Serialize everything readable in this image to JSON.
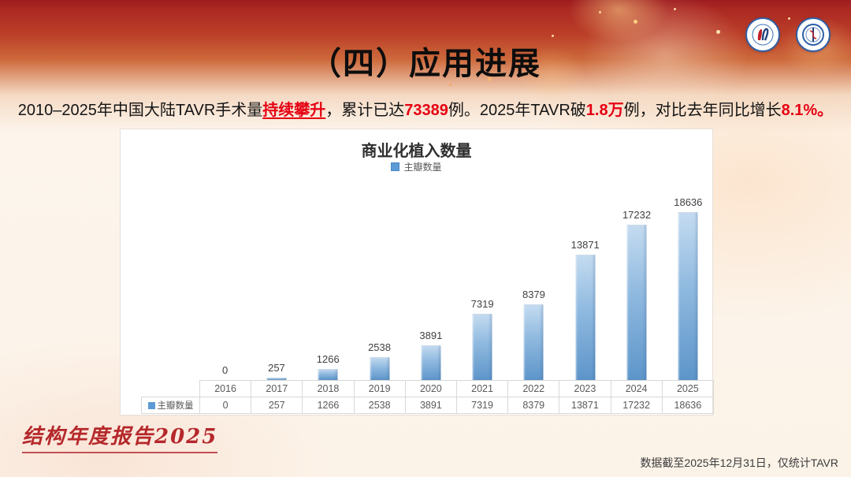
{
  "slide": {
    "title": "（四）应用进展",
    "subtitle": [
      {
        "text": "2010–2025年中国大陆TAVR手术量",
        "style": "normal"
      },
      {
        "text": "持续攀升",
        "style": "red-underline"
      },
      {
        "text": "，累计已达",
        "style": "normal"
      },
      {
        "text": "73389",
        "style": "red"
      },
      {
        "text": "例。2025年TAVR破",
        "style": "normal"
      },
      {
        "text": "1.8万",
        "style": "red"
      },
      {
        "text": "例，对比去年同比增长",
        "style": "normal"
      },
      {
        "text": "8.1%。",
        "style": "red"
      }
    ],
    "report_label": "结构年度报告2025",
    "footer_note": "数据截至2025年12月31日，仅统计TAVR"
  },
  "logos": [
    {
      "name": "structural-heart-society-logo"
    },
    {
      "name": "medical-association-logo"
    }
  ],
  "chart_data": {
    "type": "bar",
    "title": "商业化植入数量",
    "legend_entries": [
      "主瓣数量"
    ],
    "legend_position": "top",
    "categories": [
      "2016",
      "2017",
      "2018",
      "2019",
      "2020",
      "2021",
      "2022",
      "2023",
      "2024",
      "2025"
    ],
    "series": [
      {
        "name": "主瓣数量",
        "values": [
          0,
          257,
          1266,
          2538,
          3891,
          7319,
          8379,
          13871,
          17232,
          18636
        ]
      }
    ],
    "data_labels": true,
    "data_table": true,
    "grid": false,
    "ylim": [
      0,
      20000
    ],
    "bar_color": "#5b9bd5",
    "bar_gradient": [
      "#c5dcf1",
      "#5d95ca"
    ]
  },
  "colors": {
    "accent_red": "#e60012",
    "banner_red": "#9e1c1f",
    "bar_blue": "#5b9bd5",
    "label_text": "#404040",
    "table_text": "#595959"
  }
}
